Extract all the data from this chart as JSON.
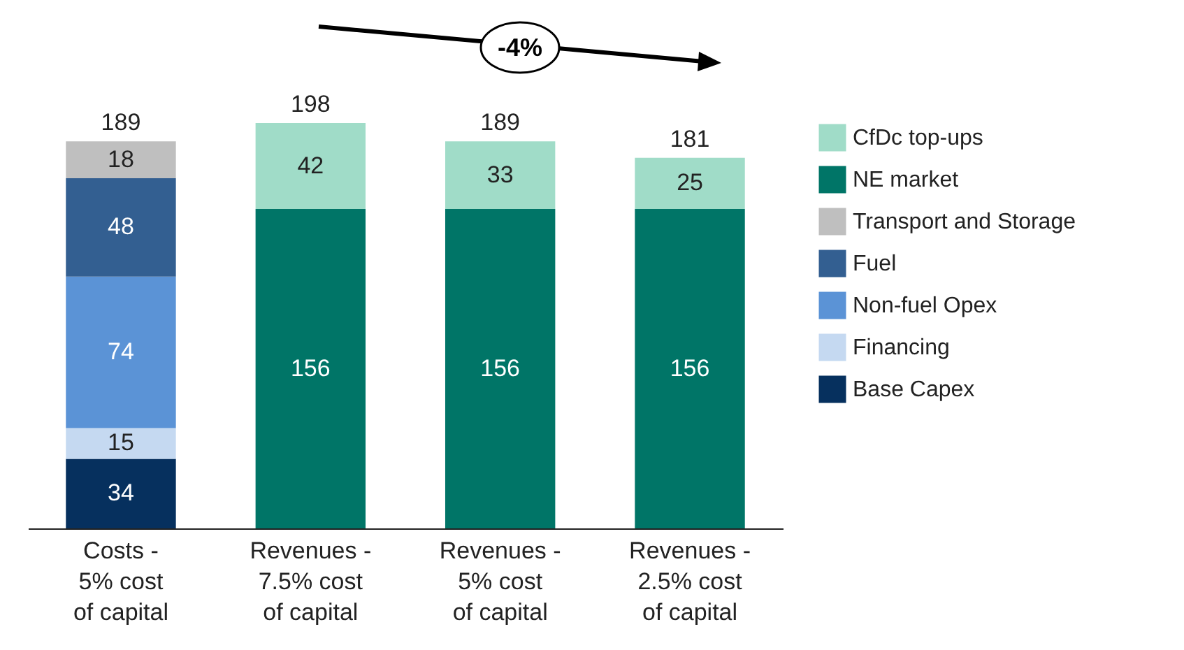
{
  "chart_data": {
    "type": "bar",
    "stacked": true,
    "data_labels": true,
    "legend": "right",
    "grid": false,
    "categories": [
      "Costs - 5% cost of capital",
      "Revenues - 7.5% cost of capital",
      "Revenues -   5% cost of capital",
      "Revenues - 2.5% cost of capital"
    ],
    "series": [
      {
        "name": "Base Capex",
        "color": "#06305e",
        "values": [
          34,
          null,
          null,
          null
        ]
      },
      {
        "name": "Financing",
        "color": "#c5d9f1",
        "values": [
          15,
          null,
          null,
          null
        ]
      },
      {
        "name": "Non-fuel Opex",
        "color": "#5b93d6",
        "values": [
          74,
          null,
          null,
          null
        ]
      },
      {
        "name": "Fuel",
        "color": "#335f91",
        "values": [
          48,
          null,
          null,
          null
        ]
      },
      {
        "name": "Transport and Storage",
        "color": "#bfbfbf",
        "values": [
          18,
          null,
          null,
          null
        ]
      },
      {
        "name": "NE market",
        "color": "#007567",
        "values": [
          null,
          156,
          156,
          156
        ]
      },
      {
        "name": "CfDc top-ups",
        "color": "#a0dcc8",
        "values": [
          null,
          42,
          33,
          25
        ]
      }
    ],
    "totals": [
      "189",
      "198",
      "189",
      "181"
    ],
    "annotations": [
      "-4%"
    ]
  }
}
